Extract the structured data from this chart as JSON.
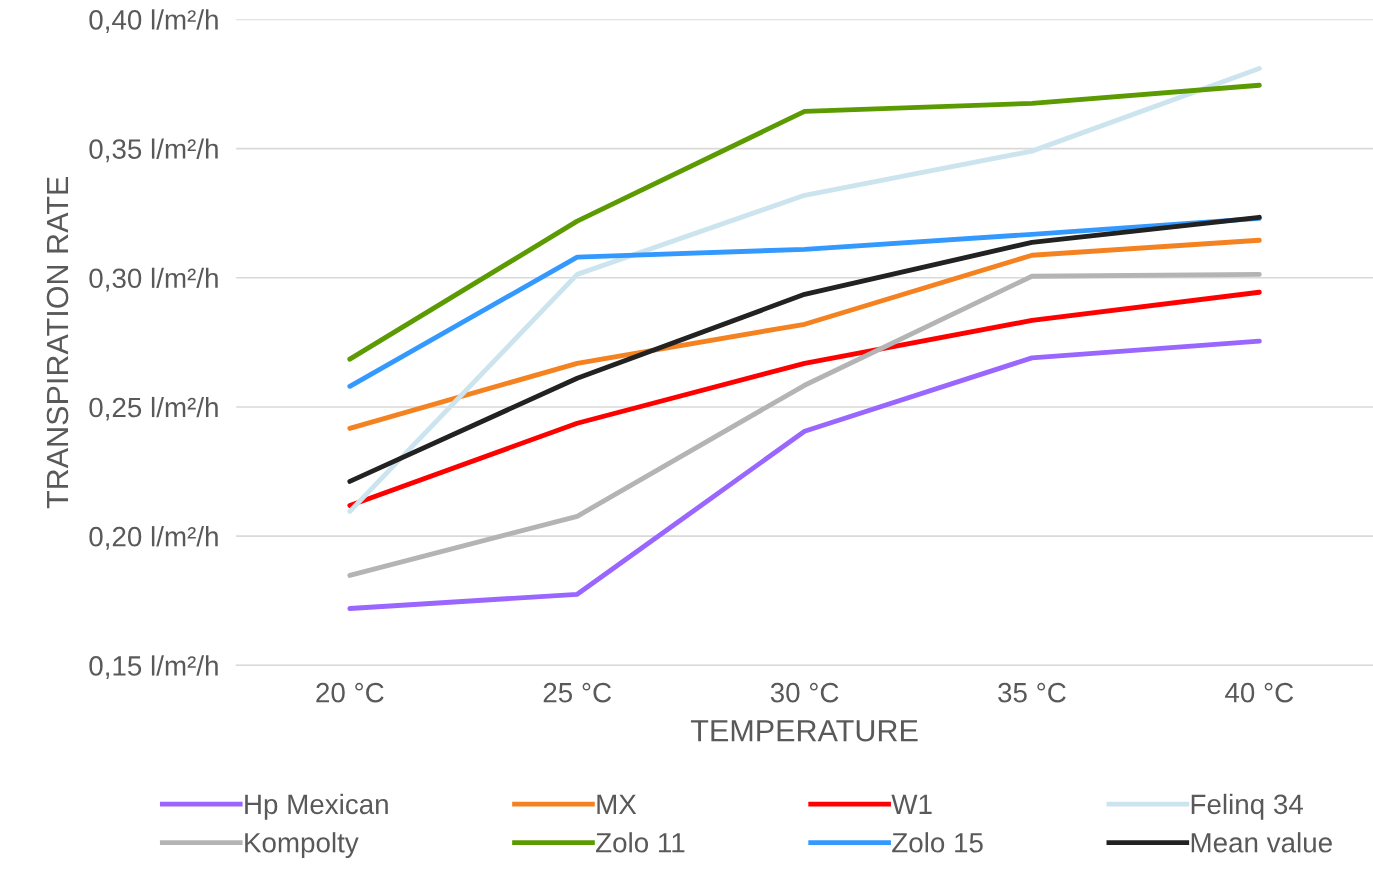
{
  "chart_data": {
    "type": "line",
    "xlabel": "TEMPERATURE",
    "ylabel": "TRANSPIRATION RATE",
    "categories": [
      "20 °C",
      "25 °C",
      "30 °C",
      "35 °C",
      "40 °C"
    ],
    "ylim": [
      0.15,
      0.4
    ],
    "yticks": [
      {
        "value": 0.15,
        "label": "0,15 l/m²/h"
      },
      {
        "value": 0.2,
        "label": "0,20 l/m²/h"
      },
      {
        "value": 0.25,
        "label": "0,25 l/m²/h"
      },
      {
        "value": 0.3,
        "label": "0,30 l/m²/h"
      },
      {
        "value": 0.35,
        "label": "0,35 l/m²/h"
      },
      {
        "value": 0.4,
        "label": "0,40 l/m²/h"
      }
    ],
    "grid": "y",
    "legend": "bottom",
    "marker": "none",
    "line_style": "solid",
    "series": [
      {
        "name": "Hp Mexican",
        "color": "#9966ff",
        "values": [
          0.172,
          0.1775,
          0.2406,
          0.269,
          0.2755
        ]
      },
      {
        "name": "MX",
        "color": "#f58220",
        "values": [
          0.2417,
          0.2669,
          0.282,
          0.3087,
          0.3145
        ]
      },
      {
        "name": "W1",
        "color": "#ff0000",
        "values": [
          0.2119,
          0.2437,
          0.2669,
          0.2835,
          0.2944
        ]
      },
      {
        "name": "Felinq 34",
        "color": "#cce4ee",
        "values": [
          0.2096,
          0.3013,
          0.3319,
          0.349,
          0.381
        ]
      },
      {
        "name": "Kompolty",
        "color": "#b4b4b4",
        "values": [
          0.1848,
          0.2077,
          0.2584,
          0.3006,
          0.3013
        ]
      },
      {
        "name": "Zolo 11",
        "color": "#5b9a00",
        "values": [
          0.2685,
          0.3219,
          0.3644,
          0.3675,
          0.3745
        ]
      },
      {
        "name": "Zolo 15",
        "color": "#3399ff",
        "values": [
          0.258,
          0.308,
          0.311,
          0.3168,
          0.323
        ]
      },
      {
        "name": "Mean value",
        "color": "#222222",
        "values": [
          0.2212,
          0.2611,
          0.2936,
          0.3137,
          0.3234
        ]
      }
    ]
  }
}
